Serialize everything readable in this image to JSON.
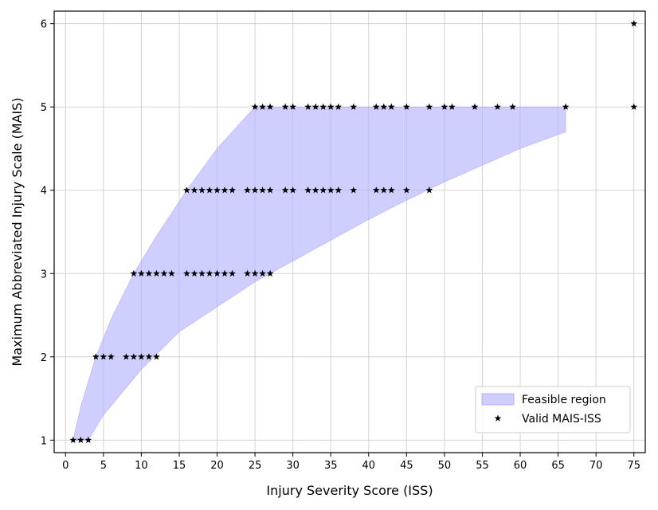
{
  "chart_data": {
    "type": "scatter",
    "xlabel": "Injury Severity Score (ISS)",
    "ylabel": "Maximum Abbreviated Injury Scale (MAIS)",
    "xlim": [
      -1.5,
      76.5
    ],
    "ylim": [
      0.85,
      6.15
    ],
    "x_ticks": [
      0,
      5,
      10,
      15,
      20,
      25,
      30,
      35,
      40,
      45,
      50,
      55,
      60,
      65,
      70,
      75
    ],
    "y_ticks": [
      1,
      2,
      3,
      4,
      5,
      6
    ],
    "grid": true,
    "legend_position": "lower-right",
    "colors": {
      "feasible_fill": "#b6b6ff",
      "feasible_edge": "#8c8cff",
      "markers": "#000000",
      "grid": "#d3d3d3"
    },
    "series": [
      {
        "name": "Feasible region",
        "kind": "area",
        "upper": [
          {
            "x": 1,
            "y": 1
          },
          {
            "x": 2,
            "y": 1.4
          },
          {
            "x": 4,
            "y": 2
          },
          {
            "x": 6,
            "y": 2.45
          },
          {
            "x": 9,
            "y": 3
          },
          {
            "x": 12,
            "y": 3.45
          },
          {
            "x": 16,
            "y": 4
          },
          {
            "x": 20,
            "y": 4.5
          },
          {
            "x": 25,
            "y": 5
          },
          {
            "x": 66,
            "y": 5
          }
        ],
        "lower": [
          {
            "x": 1,
            "y": 1
          },
          {
            "x": 3,
            "y": 1
          },
          {
            "x": 5,
            "y": 1.3
          },
          {
            "x": 10,
            "y": 1.85
          },
          {
            "x": 15,
            "y": 2.3
          },
          {
            "x": 20,
            "y": 2.6
          },
          {
            "x": 25,
            "y": 2.9
          },
          {
            "x": 30,
            "y": 3.15
          },
          {
            "x": 35,
            "y": 3.4
          },
          {
            "x": 40,
            "y": 3.65
          },
          {
            "x": 45,
            "y": 3.88
          },
          {
            "x": 50,
            "y": 4.1
          },
          {
            "x": 55,
            "y": 4.3
          },
          {
            "x": 60,
            "y": 4.5
          },
          {
            "x": 66,
            "y": 4.7
          }
        ]
      },
      {
        "name": "Valid MAIS-ISS",
        "kind": "scatter",
        "points": [
          {
            "x": 1,
            "y": 1
          },
          {
            "x": 2,
            "y": 1
          },
          {
            "x": 3,
            "y": 1
          },
          {
            "x": 4,
            "y": 2
          },
          {
            "x": 5,
            "y": 2
          },
          {
            "x": 6,
            "y": 2
          },
          {
            "x": 8,
            "y": 2
          },
          {
            "x": 9,
            "y": 2
          },
          {
            "x": 10,
            "y": 2
          },
          {
            "x": 11,
            "y": 2
          },
          {
            "x": 12,
            "y": 2
          },
          {
            "x": 9,
            "y": 3
          },
          {
            "x": 10,
            "y": 3
          },
          {
            "x": 11,
            "y": 3
          },
          {
            "x": 12,
            "y": 3
          },
          {
            "x": 13,
            "y": 3
          },
          {
            "x": 14,
            "y": 3
          },
          {
            "x": 16,
            "y": 3
          },
          {
            "x": 17,
            "y": 3
          },
          {
            "x": 18,
            "y": 3
          },
          {
            "x": 19,
            "y": 3
          },
          {
            "x": 20,
            "y": 3
          },
          {
            "x": 21,
            "y": 3
          },
          {
            "x": 22,
            "y": 3
          },
          {
            "x": 24,
            "y": 3
          },
          {
            "x": 25,
            "y": 3
          },
          {
            "x": 26,
            "y": 3
          },
          {
            "x": 27,
            "y": 3
          },
          {
            "x": 16,
            "y": 4
          },
          {
            "x": 17,
            "y": 4
          },
          {
            "x": 18,
            "y": 4
          },
          {
            "x": 19,
            "y": 4
          },
          {
            "x": 20,
            "y": 4
          },
          {
            "x": 21,
            "y": 4
          },
          {
            "x": 22,
            "y": 4
          },
          {
            "x": 24,
            "y": 4
          },
          {
            "x": 25,
            "y": 4
          },
          {
            "x": 26,
            "y": 4
          },
          {
            "x": 27,
            "y": 4
          },
          {
            "x": 29,
            "y": 4
          },
          {
            "x": 30,
            "y": 4
          },
          {
            "x": 32,
            "y": 4
          },
          {
            "x": 33,
            "y": 4
          },
          {
            "x": 34,
            "y": 4
          },
          {
            "x": 35,
            "y": 4
          },
          {
            "x": 36,
            "y": 4
          },
          {
            "x": 38,
            "y": 4
          },
          {
            "x": 41,
            "y": 4
          },
          {
            "x": 42,
            "y": 4
          },
          {
            "x": 43,
            "y": 4
          },
          {
            "x": 45,
            "y": 4
          },
          {
            "x": 48,
            "y": 4
          },
          {
            "x": 25,
            "y": 5
          },
          {
            "x": 26,
            "y": 5
          },
          {
            "x": 27,
            "y": 5
          },
          {
            "x": 29,
            "y": 5
          },
          {
            "x": 30,
            "y": 5
          },
          {
            "x": 32,
            "y": 5
          },
          {
            "x": 33,
            "y": 5
          },
          {
            "x": 34,
            "y": 5
          },
          {
            "x": 35,
            "y": 5
          },
          {
            "x": 36,
            "y": 5
          },
          {
            "x": 38,
            "y": 5
          },
          {
            "x": 41,
            "y": 5
          },
          {
            "x": 42,
            "y": 5
          },
          {
            "x": 43,
            "y": 5
          },
          {
            "x": 45,
            "y": 5
          },
          {
            "x": 48,
            "y": 5
          },
          {
            "x": 50,
            "y": 5
          },
          {
            "x": 51,
            "y": 5
          },
          {
            "x": 54,
            "y": 5
          },
          {
            "x": 57,
            "y": 5
          },
          {
            "x": 59,
            "y": 5
          },
          {
            "x": 66,
            "y": 5
          },
          {
            "x": 75,
            "y": 5
          },
          {
            "x": 75,
            "y": 6
          }
        ]
      }
    ]
  }
}
